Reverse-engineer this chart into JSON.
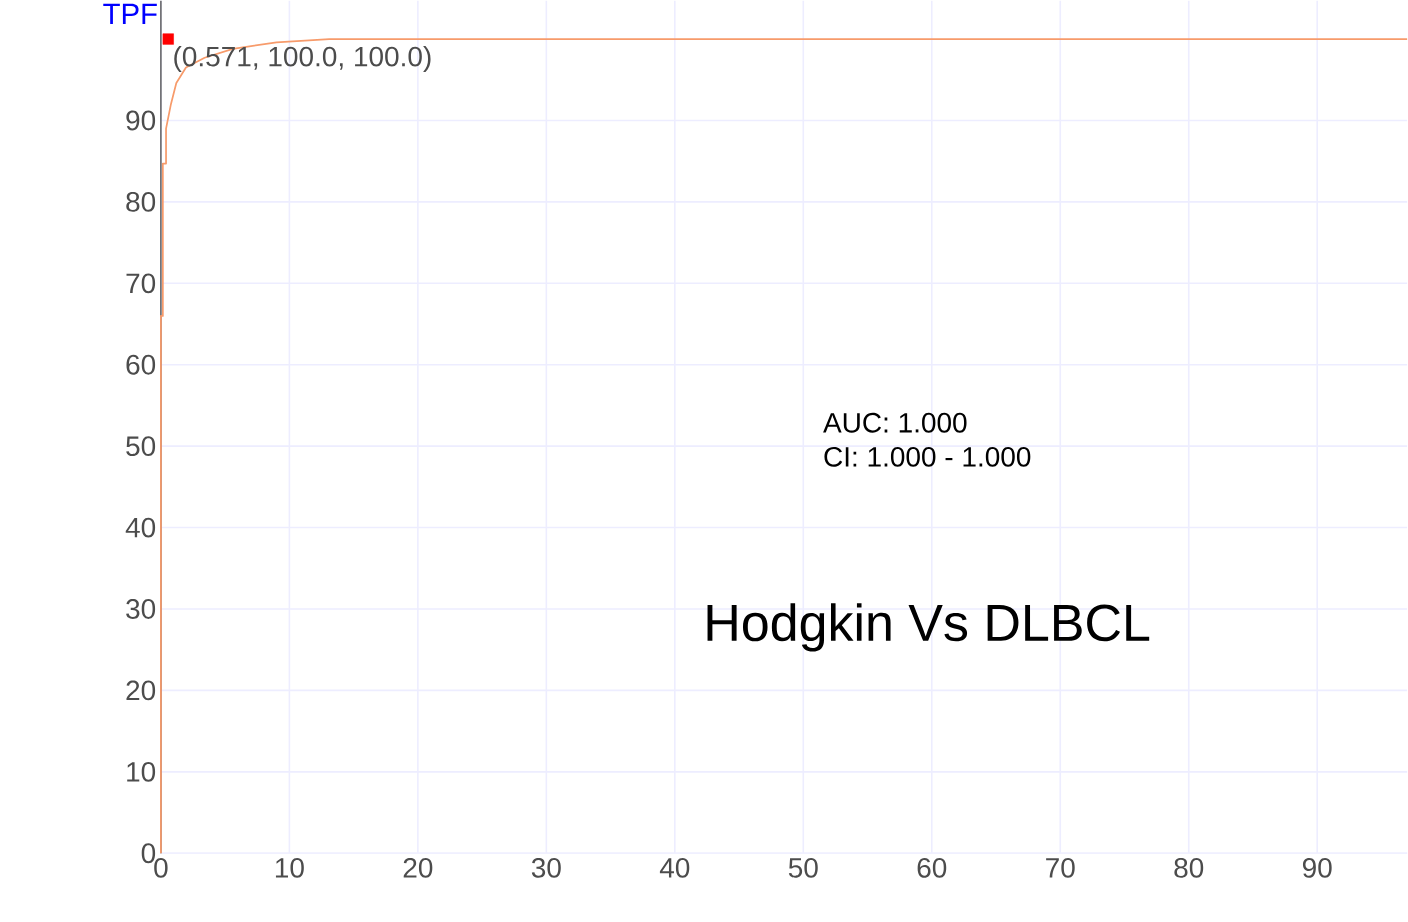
{
  "chart_data": {
    "type": "line",
    "title": "Hodgkin Vs DLBCL",
    "ylabel": "TPF",
    "xlim": [
      0,
      97
    ],
    "ylim": [
      0,
      104.7
    ],
    "xticks": [
      0,
      10,
      20,
      30,
      40,
      50,
      60,
      70,
      80,
      90
    ],
    "yticks": [
      0,
      10,
      20,
      30,
      40,
      50,
      60,
      70,
      80,
      90
    ],
    "grid": true,
    "series": [
      {
        "color": "#f79b6b",
        "marker": "none",
        "x": [
          0,
          0,
          0.15,
          0.15,
          0.4,
          0.4,
          0.78,
          1.2,
          1.95,
          3.4,
          5.6,
          9,
          13.1,
          97
        ],
        "values": [
          0,
          66,
          66,
          84.7,
          84.7,
          89,
          92,
          94.6,
          96.5,
          97.7,
          98.8,
          99.6,
          100,
          100
        ]
      },
      {
        "type": "scatter",
        "color": "#ff0000",
        "marker": "square",
        "x": [
          0.571
        ],
        "values": [
          100
        ]
      }
    ],
    "annotations": [
      {
        "text": "(0.571, 100.0, 100.0)",
        "x": 0.571,
        "y": 100
      },
      "AUC: 1.000",
      "CI: 1.000 - 1.000"
    ]
  }
}
